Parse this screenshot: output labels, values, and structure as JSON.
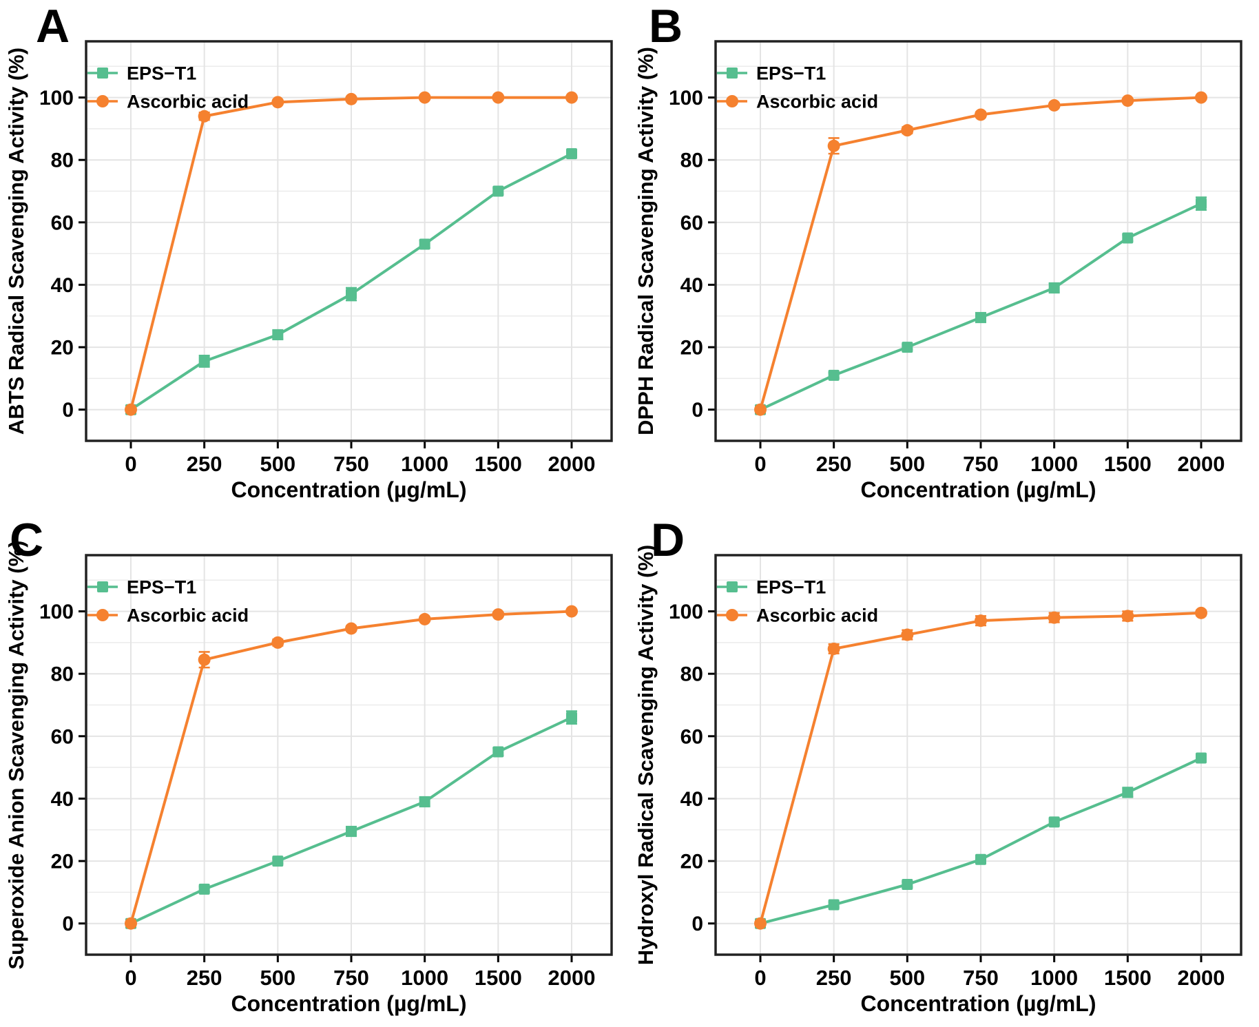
{
  "figure": {
    "background": "#ffffff",
    "panel_labels": [
      "A",
      "B",
      "C",
      "D"
    ]
  },
  "colors": {
    "eps_t1": "#56BE8F",
    "ascorbic": "#F5812F",
    "grid_minor": "#EBEBEB",
    "grid_major": "#E4E4E4",
    "axis_border": "#222222",
    "tick": "#000000",
    "text": "#000000"
  },
  "legend": {
    "items": [
      {
        "label": "EPS−T1",
        "color_key": "eps_t1",
        "marker": "square"
      },
      {
        "label": "Ascorbic acid",
        "color_key": "ascorbic",
        "marker": "circle"
      }
    ],
    "position": "top-left"
  },
  "chart_data": [
    {
      "panel_label": "A",
      "type": "line",
      "title": "",
      "xlabel": "Concentration (µg/mL)",
      "ylabel": "ABTS Radical Scavenging Activity (%)",
      "categories": [
        0,
        250,
        500,
        750,
        1000,
        1500,
        2000
      ],
      "x_tick_labels": [
        "0",
        "250",
        "500",
        "750",
        "1000",
        "1500",
        "2000"
      ],
      "y_ticks": [
        0,
        20,
        40,
        60,
        80,
        100
      ],
      "ylim": [
        -10,
        118
      ],
      "grid": true,
      "legend_position": "top-left",
      "series": [
        {
          "name": "EPS−T1",
          "color_key": "eps_t1",
          "marker": "square",
          "values": [
            0,
            15.5,
            24,
            37,
            53,
            70,
            82
          ],
          "errors": [
            0.5,
            1.8,
            1.5,
            2,
            1.2,
            1,
            1
          ]
        },
        {
          "name": "Ascorbic acid",
          "color_key": "ascorbic",
          "marker": "circle",
          "values": [
            0,
            94,
            98.5,
            99.5,
            100,
            100,
            100
          ],
          "errors": [
            0.4,
            1.2,
            0.6,
            0.5,
            0.4,
            0.4,
            0.4
          ]
        }
      ]
    },
    {
      "panel_label": "B",
      "type": "line",
      "title": "",
      "xlabel": "Concentration (µg/mL)",
      "ylabel": "DPPH Radical Scavenging Activity (%)",
      "categories": [
        0,
        250,
        500,
        750,
        1000,
        1500,
        2000
      ],
      "x_tick_labels": [
        "0",
        "250",
        "500",
        "750",
        "1000",
        "1500",
        "2000"
      ],
      "y_ticks": [
        0,
        20,
        40,
        60,
        80,
        100
      ],
      "ylim": [
        -10,
        118
      ],
      "grid": true,
      "legend_position": "top-left",
      "series": [
        {
          "name": "EPS−T1",
          "color_key": "eps_t1",
          "marker": "square",
          "values": [
            0,
            11,
            20,
            29.5,
            39,
            55,
            66
          ],
          "errors": [
            0.4,
            0.8,
            0.8,
            1.5,
            1.5,
            1,
            2
          ]
        },
        {
          "name": "Ascorbic acid",
          "color_key": "ascorbic",
          "marker": "circle",
          "values": [
            0,
            84.5,
            89.5,
            94.5,
            97.5,
            99,
            100
          ],
          "errors": [
            0.4,
            2.5,
            1,
            0.8,
            0.6,
            0.5,
            0.4
          ]
        }
      ]
    },
    {
      "panel_label": "C",
      "type": "line",
      "title": "",
      "xlabel": "Concentration (µg/mL)",
      "ylabel": "Superoxide Anion Scavenging Activity (%)",
      "categories": [
        0,
        250,
        500,
        750,
        1000,
        1500,
        2000
      ],
      "x_tick_labels": [
        "0",
        "250",
        "500",
        "750",
        "1000",
        "1500",
        "2000"
      ],
      "y_ticks": [
        0,
        20,
        40,
        60,
        80,
        100
      ],
      "ylim": [
        -10,
        118
      ],
      "grid": true,
      "legend_position": "top-left",
      "series": [
        {
          "name": "EPS−T1",
          "color_key": "eps_t1",
          "marker": "square",
          "values": [
            0,
            11,
            20,
            29.5,
            39,
            55,
            66
          ],
          "errors": [
            0.4,
            0.8,
            0.8,
            1.5,
            1.5,
            1.2,
            2
          ]
        },
        {
          "name": "Ascorbic acid",
          "color_key": "ascorbic",
          "marker": "circle",
          "values": [
            0,
            84.5,
            90,
            94.5,
            97.5,
            99,
            100
          ],
          "errors": [
            0.4,
            2.5,
            1,
            0.8,
            0.6,
            0.5,
            0.4
          ]
        }
      ]
    },
    {
      "panel_label": "D",
      "type": "line",
      "title": "",
      "xlabel": "Concentration (µg/mL)",
      "ylabel": "Hydroxyl Radical Scavenging Activity (%)",
      "categories": [
        0,
        250,
        500,
        750,
        1000,
        1500,
        2000
      ],
      "x_tick_labels": [
        "0",
        "250",
        "500",
        "750",
        "1000",
        "1500",
        "2000"
      ],
      "y_ticks": [
        0,
        20,
        40,
        60,
        80,
        100
      ],
      "ylim": [
        -10,
        118
      ],
      "grid": true,
      "legend_position": "top-left",
      "series": [
        {
          "name": "EPS−T1",
          "color_key": "eps_t1",
          "marker": "square",
          "values": [
            0,
            6,
            12.5,
            20.5,
            32.5,
            42,
            53
          ],
          "errors": [
            0.3,
            0.8,
            0.8,
            1,
            1,
            1.5,
            1
          ]
        },
        {
          "name": "Ascorbic acid",
          "color_key": "ascorbic",
          "marker": "circle",
          "values": [
            0,
            88,
            92.5,
            97,
            98,
            98.5,
            99.5
          ],
          "errors": [
            0.3,
            1.5,
            1.5,
            1.5,
            1.5,
            1.5,
            0.8
          ]
        }
      ]
    }
  ]
}
